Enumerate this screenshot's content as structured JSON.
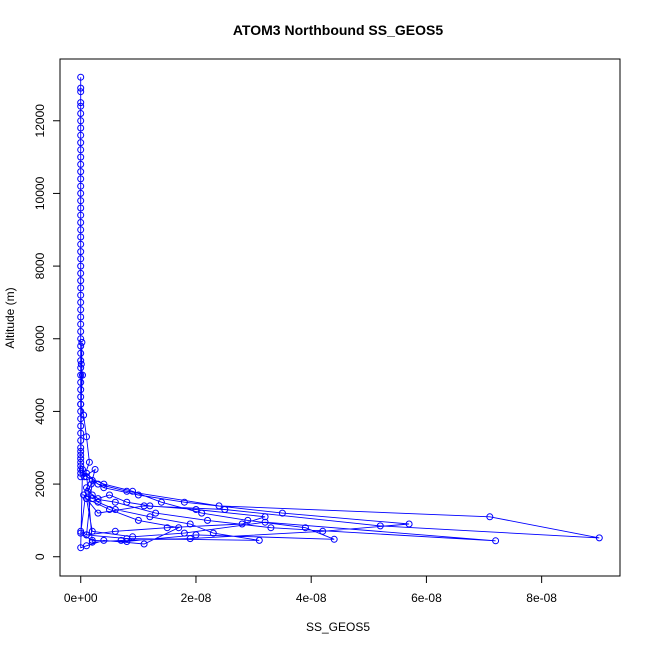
{
  "chart_data": {
    "type": "scatter",
    "title": "ATOM3 Northbound SS_GEOS5",
    "xlabel": "SS_GEOS5",
    "ylabel": "Altitude (m)",
    "xlim": [
      -3.6e-09,
      9.36e-08
    ],
    "ylim": [
      -530,
      13700
    ],
    "x_ticks": [
      0,
      2e-08,
      4e-08,
      6e-08,
      8e-08
    ],
    "x_tick_labels": [
      "0e+00",
      "2e-08",
      "4e-08",
      "6e-08",
      "8e-08"
    ],
    "y_ticks": [
      0,
      2000,
      4000,
      6000,
      8000,
      10000,
      12000
    ],
    "y_tick_labels": [
      "0",
      "2000",
      "4000",
      "6000",
      "8000",
      "10000",
      "12000"
    ],
    "marker": "open-circle",
    "line": true,
    "color": "#0000ff",
    "series": [
      {
        "x": [
          0,
          0,
          0,
          0,
          0,
          0,
          0,
          0,
          0,
          0,
          0,
          0,
          0,
          0,
          0,
          0,
          0,
          0,
          0,
          0,
          0,
          0,
          0,
          0,
          0,
          0,
          0,
          0,
          0,
          0,
          0,
          0,
          0,
          0,
          0,
          0,
          0,
          0,
          0,
          0,
          0,
          0,
          0,
          0,
          0,
          0,
          0,
          0,
          0,
          0,
          0,
          0,
          0,
          0,
          0,
          0,
          0,
          0,
          0,
          0,
          2e-10,
          1e-10,
          3e-10,
          0,
          5e-10,
          1e-09,
          1.5e-09,
          6e-10,
          2.5e-09,
          1.8e-09,
          1.2e-09,
          3e-09,
          5e-09,
          8e-09,
          1.2e-08,
          2e-08,
          3.2e-08,
          2.8e-08,
          1.5e-08,
          6e-09,
          1e-09,
          2e-09,
          4e-09,
          1e-08,
          1.8e-08,
          3.5e-08,
          5.7e-08,
          4.2e-08,
          1.9e-08,
          7e-09,
          2e-09,
          1e-09,
          3e-09,
          8e-09,
          2.4e-08,
          7.1e-08,
          9e-08,
          5.2e-08,
          2.5e-08,
          1.1e-08,
          3e-09,
          5e-10,
          2e-09,
          6e-09,
          1.3e-08,
          2.2e-08,
          3.3e-08,
          7.2e-08,
          3.2e-08,
          1.8e-08,
          9e-09,
          2e-09,
          1e-09,
          5e-09,
          1e-08,
          1.7e-08,
          1.1e-08,
          4e-09,
          1e-09,
          0,
          3e-10,
          1e-09,
          4e-09,
          9e-09,
          1.4e-08,
          2.1e-08,
          2.9e-08,
          3.9e-08,
          4.4e-08,
          2e-08,
          8e-09,
          2e-09,
          0,
          1e-09,
          2e-09,
          3e-09,
          6e-09,
          1.2e-08,
          1.9e-08,
          2.3e-08,
          3.1e-08,
          8e-09,
          1e-09,
          0
        ],
        "y": [
          13200,
          12900,
          12800,
          12500,
          12400,
          12200,
          12000,
          11800,
          11600,
          11400,
          11200,
          11000,
          10800,
          10600,
          10400,
          10200,
          10000,
          9800,
          9600,
          9400,
          9200,
          9000,
          8800,
          8600,
          8400,
          8200,
          8000,
          7800,
          7600,
          7400,
          7200,
          7000,
          6800,
          6600,
          6400,
          6200,
          6000,
          5800,
          5600,
          5400,
          5200,
          5000,
          4800,
          4600,
          4400,
          4200,
          4000,
          3800,
          3600,
          3400,
          3200,
          3000,
          2900,
          2800,
          2700,
          2600,
          2500,
          2400,
          2300,
          2200,
          5900,
          5300,
          5000,
          4200,
          3900,
          3300,
          2600,
          2200,
          2400,
          2000,
          1800,
          1600,
          1700,
          1500,
          1400,
          1300,
          1100,
          900,
          800,
          700,
          600,
          2100,
          1900,
          1700,
          1500,
          1200,
          900,
          700,
          500,
          450,
          400,
          2300,
          2000,
          1800,
          1400,
          1100,
          520,
          850,
          1300,
          1400,
          1200,
          1700,
          1600,
          1500,
          1200,
          1000,
          800,
          440,
          950,
          650,
          550,
          700,
          1600,
          1300,
          1000,
          800,
          350,
          450,
          300,
          250,
          2400,
          2200,
          2000,
          1800,
          1500,
          1200,
          1000,
          800,
          480,
          600,
          420,
          450,
          650,
          1900,
          1700,
          1500,
          1300,
          1100,
          900,
          650,
          450,
          500,
          600,
          700
        ]
      }
    ]
  }
}
